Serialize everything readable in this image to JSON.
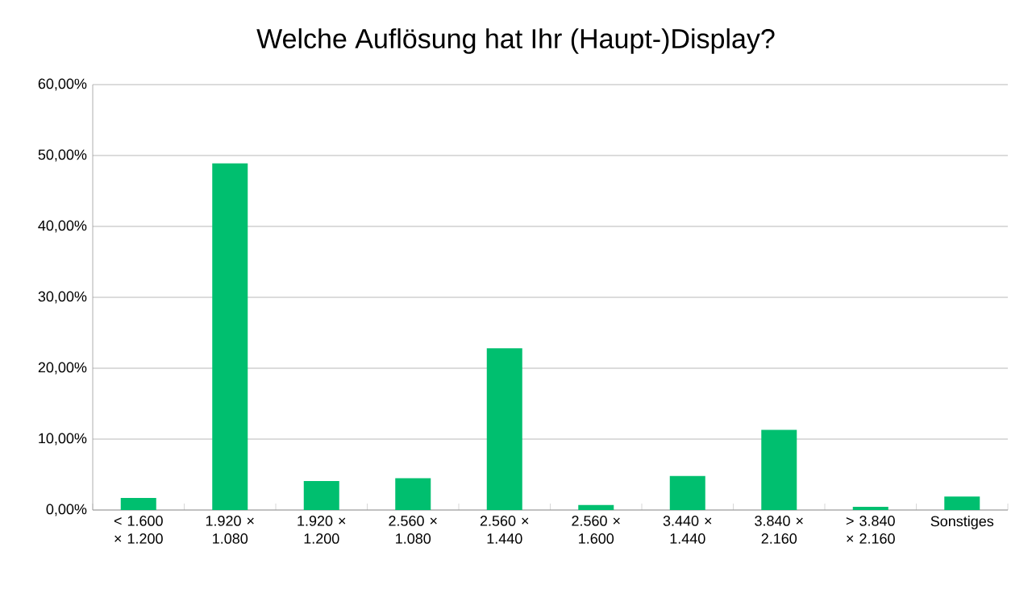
{
  "chart_data": {
    "type": "bar",
    "title": "Welche Auflösung hat Ihr (Haupt-)Display?",
    "categories": [
      "< 1.600 × 1.200",
      "1.920 × 1.080",
      "1.920 × 1.200",
      "2.560 × 1.080",
      "2.560 × 1.440",
      "2.560 × 1.600",
      "3.440 × 1.440",
      "3.840 × 2.160",
      "> 3.840 × 2.160",
      "Sonstiges"
    ],
    "values": [
      1.7,
      48.9,
      4.1,
      4.5,
      22.8,
      0.7,
      4.8,
      11.3,
      0.45,
      1.9
    ],
    "color": "#00bf6f",
    "ylim": [
      0,
      60
    ],
    "yticks": [
      {
        "value": 0,
        "label": "0,00%"
      },
      {
        "value": 10,
        "label": "10,00%"
      },
      {
        "value": 20,
        "label": "20,00%"
      },
      {
        "value": 30,
        "label": "30,00%"
      },
      {
        "value": 40,
        "label": "40,00%"
      },
      {
        "value": 50,
        "label": "50,00%"
      },
      {
        "value": 60,
        "label": "60,00%"
      }
    ],
    "grid": "y"
  }
}
